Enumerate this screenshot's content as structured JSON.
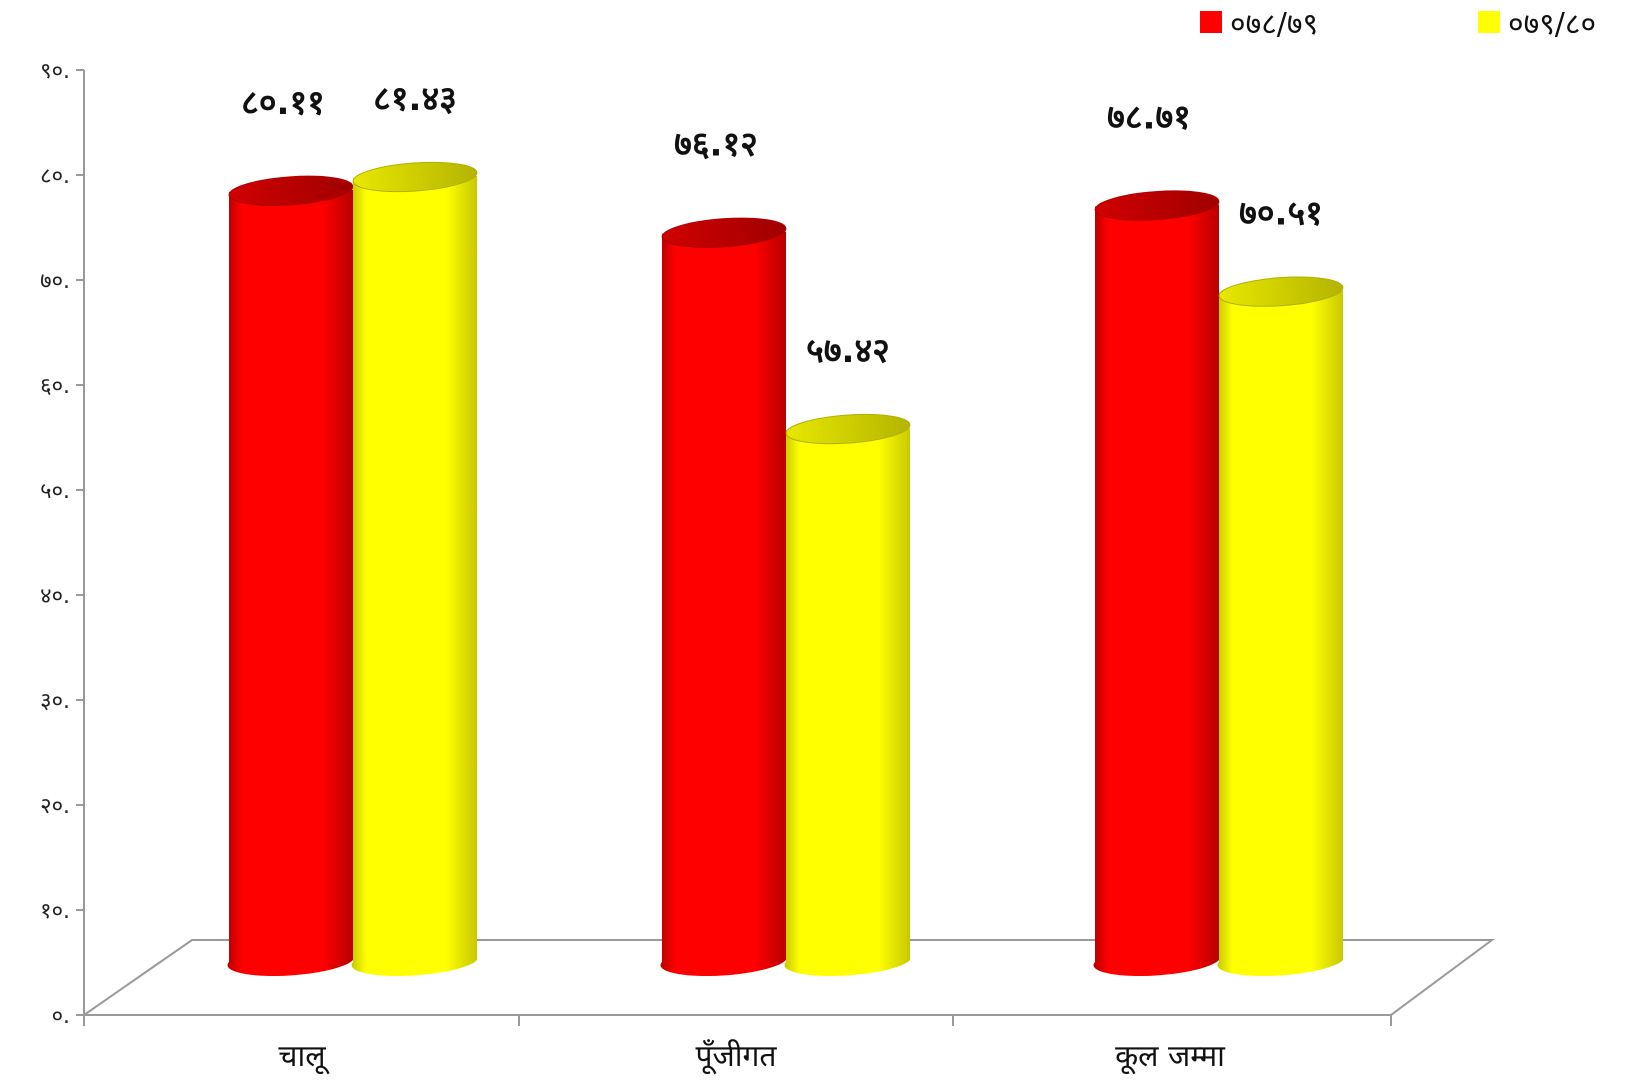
{
  "chart_data": {
    "type": "bar",
    "categories": [
      "चालू",
      "पूँजीगत",
      "कूल जम्मा"
    ],
    "series": [
      {
        "name": "०७८/७९",
        "color": "#ff0000",
        "values": [
          80.11,
          76.12,
          78.71
        ],
        "labels": [
          "८०.११",
          "७६.१२",
          "७८.७१"
        ]
      },
      {
        "name": "०७९/८०",
        "color": "#ffff00",
        "values": [
          81.43,
          57.42,
          70.51
        ],
        "labels": [
          "८१.४३",
          "५७.४२",
          "७०.५१"
        ]
      }
    ],
    "y_ticks": [
      {
        "value": 0,
        "label": "०."
      },
      {
        "value": 10,
        "label": "१०."
      },
      {
        "value": 20,
        "label": "२०."
      },
      {
        "value": 30,
        "label": "३०."
      },
      {
        "value": 40,
        "label": "४०."
      },
      {
        "value": 50,
        "label": "५०."
      },
      {
        "value": 60,
        "label": "६०."
      },
      {
        "value": 70,
        "label": "७०."
      },
      {
        "value": 80,
        "label": "८०."
      },
      {
        "value": 90,
        "label": "९०."
      }
    ],
    "ylim": [
      0,
      90
    ],
    "grid": false,
    "legend_position": "top-right",
    "style": "3d-cylinder"
  }
}
